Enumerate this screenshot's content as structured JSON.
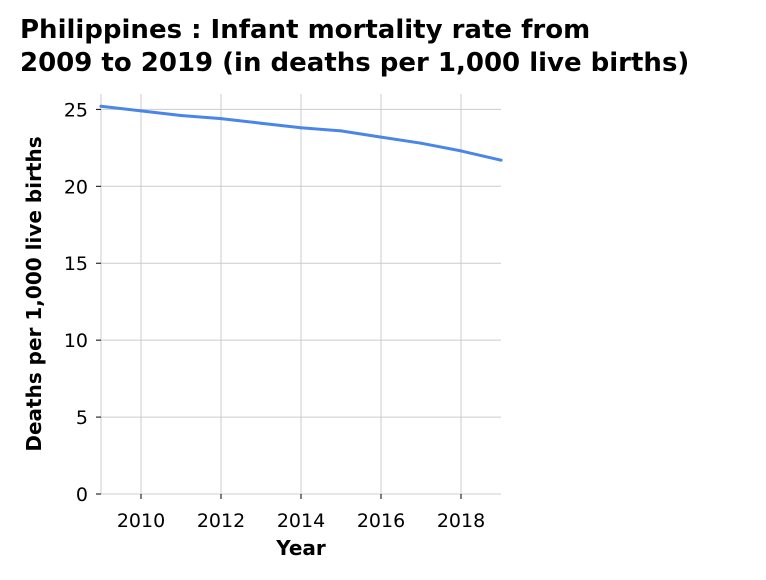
{
  "chart_data": {
    "type": "line",
    "title_lines": [
      "Philippines : Infant mortality rate from",
      "2009 to 2019 (in deaths per 1,000 live births)"
    ],
    "xlabel": "Year",
    "ylabel": "Deaths per 1,000 live births",
    "xlim": [
      2009,
      2019
    ],
    "ylim": [
      0,
      26
    ],
    "x_ticks": [
      2010,
      2012,
      2014,
      2016,
      2018
    ],
    "y_ticks": [
      0,
      5,
      10,
      15,
      20,
      25
    ],
    "grid": true,
    "series": [
      {
        "color": "#4a86e8",
        "x": [
          2009,
          2010,
          2011,
          2012,
          2013,
          2014,
          2015,
          2016,
          2017,
          2018,
          2019
        ],
        "y": [
          25.2,
          24.9,
          24.6,
          24.4,
          24.1,
          23.8,
          23.6,
          23.2,
          22.8,
          22.3,
          21.7
        ]
      }
    ]
  }
}
